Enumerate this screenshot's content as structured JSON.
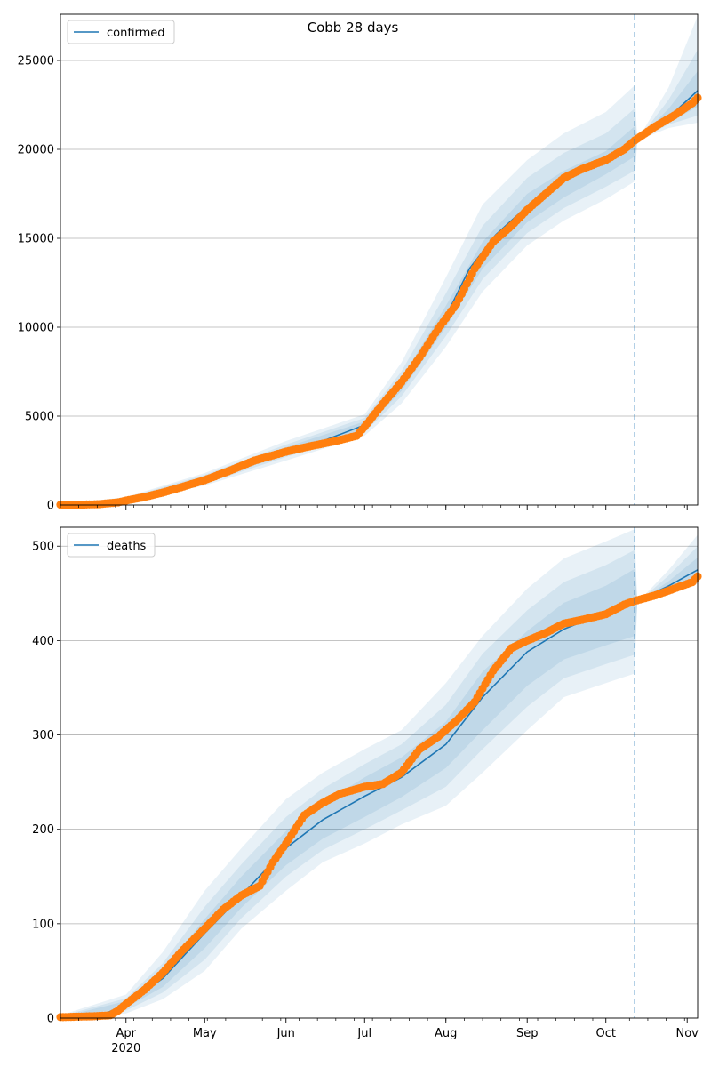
{
  "figure_title": "Cobb 28 days",
  "chart_data": [
    {
      "type": "line",
      "title": "",
      "legend": {
        "label": "confirmed",
        "placement": "upper-left"
      },
      "xlabel": "",
      "ylabel": "",
      "x_range": [
        "2020-03-07",
        "2020-11-05"
      ],
      "ylim": [
        0,
        27600
      ],
      "yticks": [
        0,
        5000,
        10000,
        15000,
        20000,
        25000
      ],
      "grid": "horizontal",
      "forecast_start": "2020-10-12",
      "observed": {
        "x": [
          "2020-03-07",
          "2020-03-15",
          "2020-03-22",
          "2020-03-29",
          "2020-04-01",
          "2020-04-08",
          "2020-04-15",
          "2020-04-22",
          "2020-05-01",
          "2020-05-10",
          "2020-05-20",
          "2020-06-01",
          "2020-06-10",
          "2020-06-20",
          "2020-06-28",
          "2020-07-01",
          "2020-07-08",
          "2020-07-15",
          "2020-07-22",
          "2020-07-29",
          "2020-08-05",
          "2020-08-12",
          "2020-08-19",
          "2020-08-26",
          "2020-09-01",
          "2020-09-08",
          "2020-09-15",
          "2020-09-22",
          "2020-10-01",
          "2020-10-08",
          "2020-10-12",
          "2020-10-20",
          "2020-10-27",
          "2020-11-03",
          "2020-11-05"
        ],
        "y": [
          20,
          20,
          50,
          150,
          250,
          450,
          700,
          1000,
          1400,
          1900,
          2500,
          3000,
          3300,
          3600,
          3900,
          4400,
          5700,
          6900,
          8300,
          9900,
          11300,
          13300,
          14800,
          15700,
          16600,
          17500,
          18400,
          18900,
          19400,
          20000,
          20500,
          21300,
          21900,
          22600,
          22900
        ]
      },
      "fit": {
        "x": [
          "2020-03-07",
          "2020-03-22",
          "2020-04-01",
          "2020-04-15",
          "2020-05-01",
          "2020-05-15",
          "2020-06-01",
          "2020-06-15",
          "2020-07-01",
          "2020-07-15",
          "2020-08-01",
          "2020-08-10",
          "2020-08-20",
          "2020-09-01",
          "2020-09-15",
          "2020-10-01",
          "2020-10-12",
          "2020-10-25",
          "2020-11-05"
        ],
        "y": [
          10,
          50,
          300,
          750,
          1450,
          2200,
          3050,
          3600,
          4500,
          6800,
          10600,
          13300,
          15200,
          16800,
          18200,
          19400,
          20500,
          21800,
          23300
        ]
      },
      "bands": {
        "x": [
          "2020-03-07",
          "2020-04-01",
          "2020-05-01",
          "2020-06-01",
          "2020-07-01",
          "2020-07-15",
          "2020-08-01",
          "2020-08-15",
          "2020-09-01",
          "2020-09-15",
          "2020-10-01",
          "2020-10-12",
          "2020-10-13",
          "2020-10-25",
          "2020-11-05"
        ],
        "lower95": [
          0,
          150,
          1100,
          2500,
          3900,
          5700,
          8900,
          12000,
          14600,
          16000,
          17200,
          18200,
          20500,
          21200,
          21500
        ],
        "upper95": [
          20,
          450,
          1800,
          3600,
          5100,
          8000,
          12800,
          16900,
          19400,
          20900,
          22100,
          23600,
          20500,
          23500,
          27500
        ],
        "lower80": [
          0,
          200,
          1200,
          2700,
          4100,
          6100,
          9500,
          12700,
          15300,
          16700,
          17900,
          18800,
          20500,
          21400,
          21900
        ],
        "upper80": [
          15,
          400,
          1700,
          3400,
          4900,
          7500,
          11900,
          15700,
          18400,
          19800,
          20900,
          22300,
          20500,
          22800,
          25600
        ],
        "lower50": [
          5,
          250,
          1300,
          2850,
          4300,
          6400,
          10000,
          13300,
          15900,
          17300,
          18600,
          19600,
          20500,
          21500,
          22400
        ],
        "upper50": [
          12,
          350,
          1600,
          3250,
          4700,
          7100,
          11200,
          14800,
          17500,
          18800,
          19900,
          21300,
          20500,
          22300,
          24400
        ]
      }
    },
    {
      "type": "line",
      "title": "",
      "legend": {
        "label": "deaths",
        "placement": "upper-left"
      },
      "xlabel": "",
      "ylabel": "",
      "x_range": [
        "2020-03-07",
        "2020-11-05"
      ],
      "ylim": [
        0,
        520
      ],
      "yticks": [
        0,
        100,
        200,
        300,
        400,
        500
      ],
      "grid": "horizontal",
      "forecast_start": "2020-10-12",
      "observed": {
        "x": [
          "2020-03-07",
          "2020-03-20",
          "2020-03-26",
          "2020-03-29",
          "2020-04-01",
          "2020-04-08",
          "2020-04-15",
          "2020-04-22",
          "2020-05-01",
          "2020-05-08",
          "2020-05-15",
          "2020-05-22",
          "2020-05-27",
          "2020-06-01",
          "2020-06-08",
          "2020-06-15",
          "2020-06-22",
          "2020-07-01",
          "2020-07-08",
          "2020-07-15",
          "2020-07-22",
          "2020-07-29",
          "2020-08-05",
          "2020-08-12",
          "2020-08-19",
          "2020-08-26",
          "2020-09-01",
          "2020-09-08",
          "2020-09-15",
          "2020-09-22",
          "2020-10-01",
          "2020-10-08",
          "2020-10-12",
          "2020-10-20",
          "2020-10-27",
          "2020-11-03",
          "2020-11-05"
        ],
        "y": [
          1,
          2,
          3,
          8,
          15,
          30,
          48,
          70,
          95,
          115,
          130,
          140,
          165,
          185,
          215,
          228,
          238,
          245,
          248,
          260,
          285,
          298,
          315,
          335,
          368,
          392,
          400,
          408,
          418,
          422,
          428,
          438,
          442,
          448,
          455,
          462,
          468
        ]
      },
      "fit": {
        "x": [
          "2020-03-07",
          "2020-03-22",
          "2020-04-01",
          "2020-04-15",
          "2020-05-01",
          "2020-05-15",
          "2020-06-01",
          "2020-06-15",
          "2020-07-01",
          "2020-07-15",
          "2020-08-01",
          "2020-08-15",
          "2020-09-01",
          "2020-09-15",
          "2020-10-01",
          "2020-10-12",
          "2020-10-25",
          "2020-11-05"
        ],
        "y": [
          0,
          2,
          15,
          42,
          90,
          130,
          180,
          210,
          235,
          255,
          290,
          340,
          388,
          412,
          430,
          441,
          458,
          475
        ]
      },
      "bands": {
        "x": [
          "2020-03-07",
          "2020-04-01",
          "2020-04-15",
          "2020-05-01",
          "2020-05-15",
          "2020-06-01",
          "2020-06-15",
          "2020-07-01",
          "2020-07-15",
          "2020-08-01",
          "2020-08-15",
          "2020-09-01",
          "2020-09-15",
          "2020-10-01",
          "2020-10-12",
          "2020-10-13",
          "2020-10-25",
          "2020-11-05"
        ],
        "lower95": [
          0,
          5,
          20,
          50,
          95,
          135,
          165,
          185,
          205,
          225,
          260,
          305,
          340,
          355,
          365,
          440,
          452,
          460
        ],
        "upper95": [
          3,
          25,
          70,
          135,
          180,
          232,
          260,
          285,
          305,
          355,
          405,
          455,
          487,
          505,
          518,
          440,
          475,
          512
        ],
        "lower80": [
          0,
          8,
          27,
          62,
          106,
          150,
          178,
          200,
          220,
          245,
          285,
          330,
          360,
          375,
          385,
          440,
          453,
          463
        ],
        "upper80": [
          2,
          21,
          58,
          118,
          163,
          213,
          243,
          269,
          290,
          332,
          386,
          432,
          462,
          480,
          496,
          440,
          469,
          500
        ],
        "lower50": [
          0,
          11,
          33,
          74,
          117,
          162,
          190,
          213,
          234,
          265,
          305,
          352,
          380,
          395,
          405,
          440,
          455,
          466
        ],
        "upper50": [
          1,
          18,
          50,
          105,
          150,
          198,
          228,
          255,
          276,
          314,
          367,
          410,
          440,
          458,
          476,
          440,
          463,
          488
        ]
      }
    }
  ],
  "x_tick_labels": [
    {
      "date": "2020-04-01",
      "label": "Apr",
      "sub": "2020"
    },
    {
      "date": "2020-05-01",
      "label": "May"
    },
    {
      "date": "2020-06-01",
      "label": "Jun"
    },
    {
      "date": "2020-07-01",
      "label": "Jul"
    },
    {
      "date": "2020-08-01",
      "label": "Aug"
    },
    {
      "date": "2020-09-01",
      "label": "Sep"
    },
    {
      "date": "2020-10-01",
      "label": "Oct"
    },
    {
      "date": "2020-11-01",
      "label": "Nov"
    }
  ],
  "colors": {
    "fit_line": "#1f77b4",
    "observed": "#ff7f0e",
    "band": "#1f77b4",
    "forecast_line": "#1f77b4",
    "grid": "#b0b0b0"
  }
}
